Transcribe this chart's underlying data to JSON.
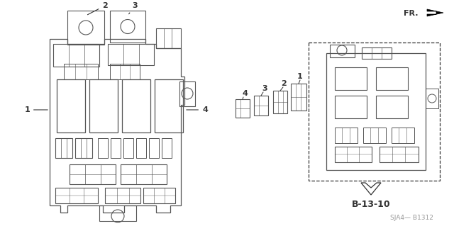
{
  "bg_color": "#ffffff",
  "line_color": "#555555",
  "dark_color": "#333333",
  "gray_color": "#999999",
  "light_gray": "#cccccc",
  "fr_label": "FR.",
  "b1312_label": "SJA4— B1312",
  "b1310_label": "B-13-10",
  "label_fs": 7,
  "annotation_fs": 7,
  "bold_label_fs": 8
}
